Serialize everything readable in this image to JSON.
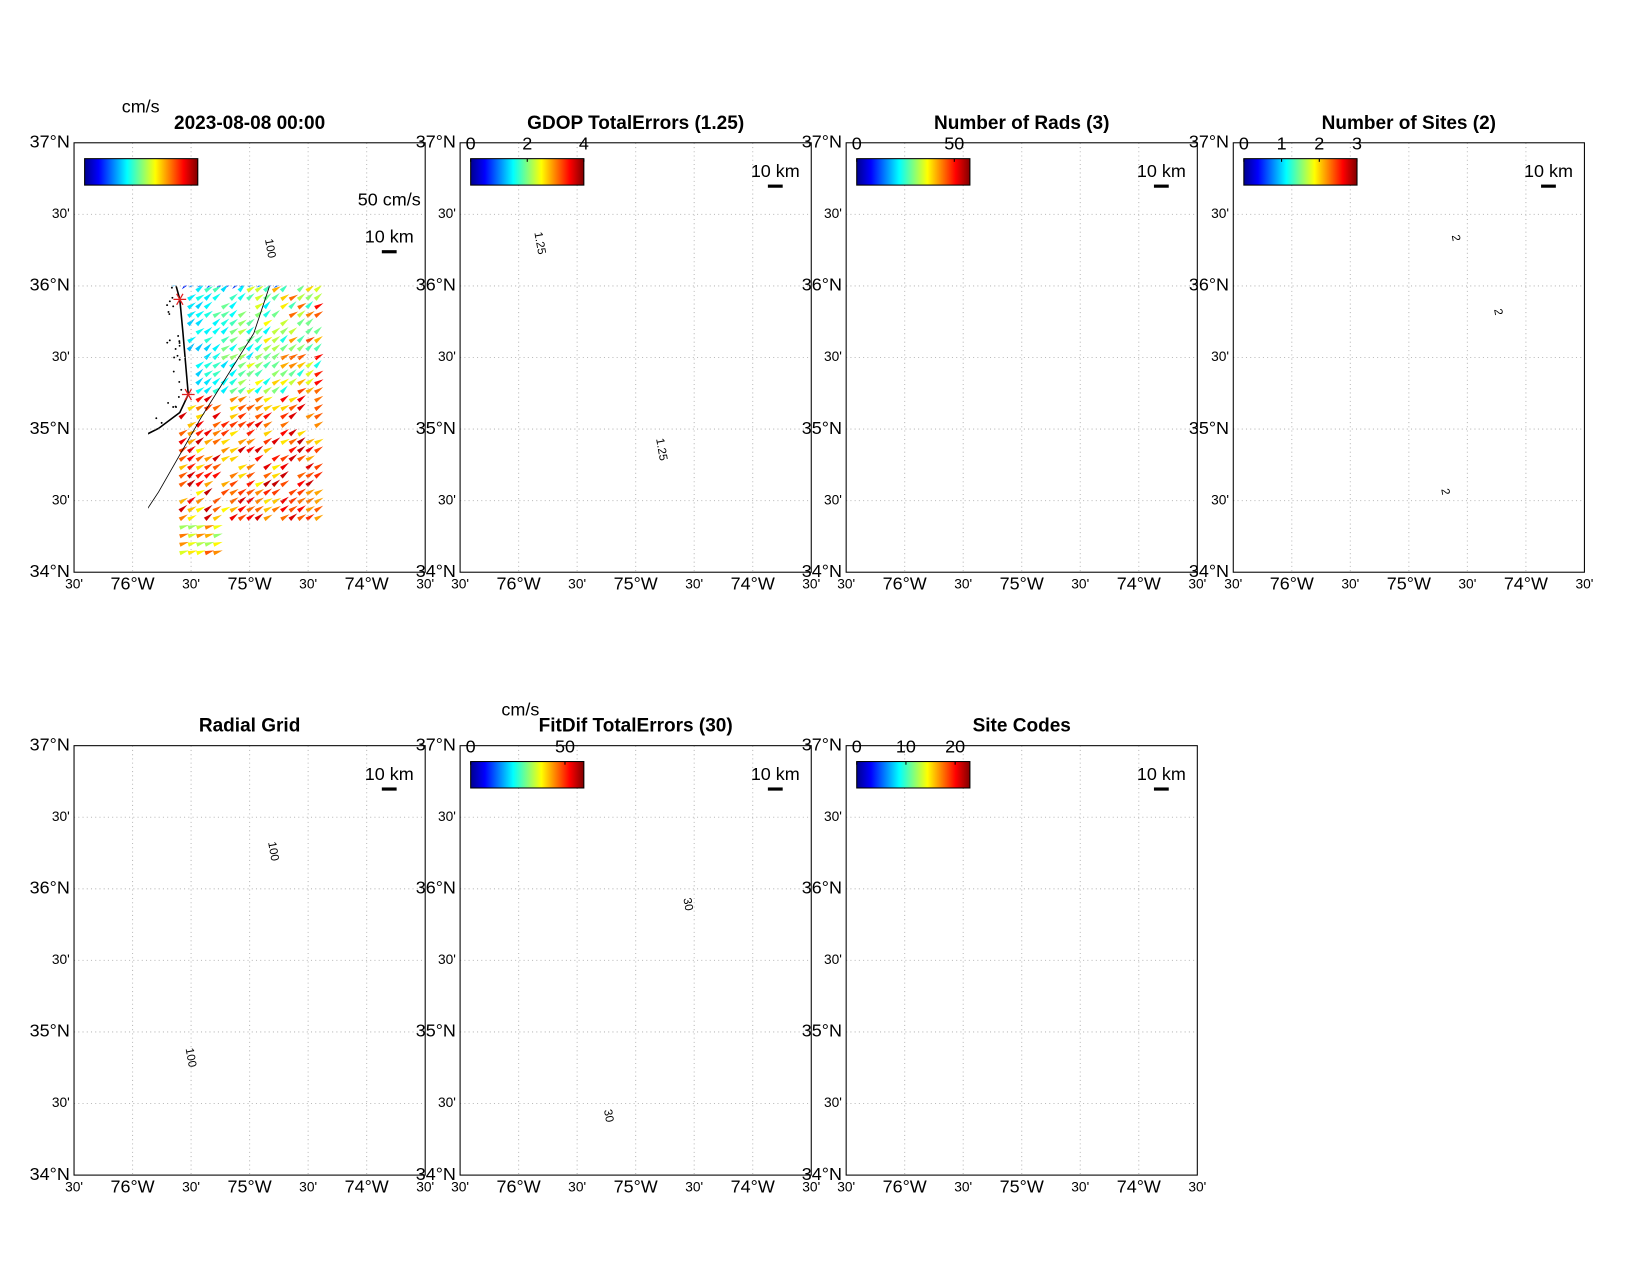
{
  "lat_labels": [
    "37°N",
    "30'",
    "36°N",
    "30'",
    "35°N",
    "30'",
    "34°N"
  ],
  "lon_labels": [
    "30'",
    "76°W",
    "30'",
    "75°W",
    "30'",
    "74°W",
    "30'"
  ],
  "panels": [
    {
      "title": "2023-08-08 00:00",
      "units": "cm/s",
      "arrow_scale": "50 cm/s",
      "scale_bar": "10 km",
      "contour_label": "100"
    },
    {
      "title": "GDOP TotalErrors (1.25)",
      "scale_bar": "10 km",
      "contour_label": "1.25",
      "colorbar": {
        "lim": [
          0,
          4
        ],
        "ticks": [
          0,
          2,
          4
        ]
      }
    },
    {
      "title": "Number of Rads (3)",
      "scale_bar": "10 km",
      "colorbar": {
        "lim": [
          0,
          58
        ],
        "ticks": [
          0,
          50
        ]
      }
    },
    {
      "title": "Number of Sites (2)",
      "scale_bar": "10 km",
      "contour_label": "2",
      "colorbar": {
        "lim": [
          0,
          3
        ],
        "ticks": [
          0,
          1,
          2,
          3
        ]
      }
    },
    {
      "title": "Radial Grid",
      "scale_bar": "10 km",
      "contour_label": "100"
    },
    {
      "title": "FitDif TotalErrors (30)",
      "units": "cm/s",
      "scale_bar": "10 km",
      "contour_label": "30",
      "colorbar": {
        "lim": [
          0,
          60
        ],
        "ticks": [
          0,
          50
        ]
      }
    },
    {
      "title": "Site Codes",
      "scale_bar": "10 km",
      "colorbar": {
        "lim": [
          0,
          23
        ],
        "ticks": [
          0,
          10,
          20
        ]
      }
    }
  ]
}
